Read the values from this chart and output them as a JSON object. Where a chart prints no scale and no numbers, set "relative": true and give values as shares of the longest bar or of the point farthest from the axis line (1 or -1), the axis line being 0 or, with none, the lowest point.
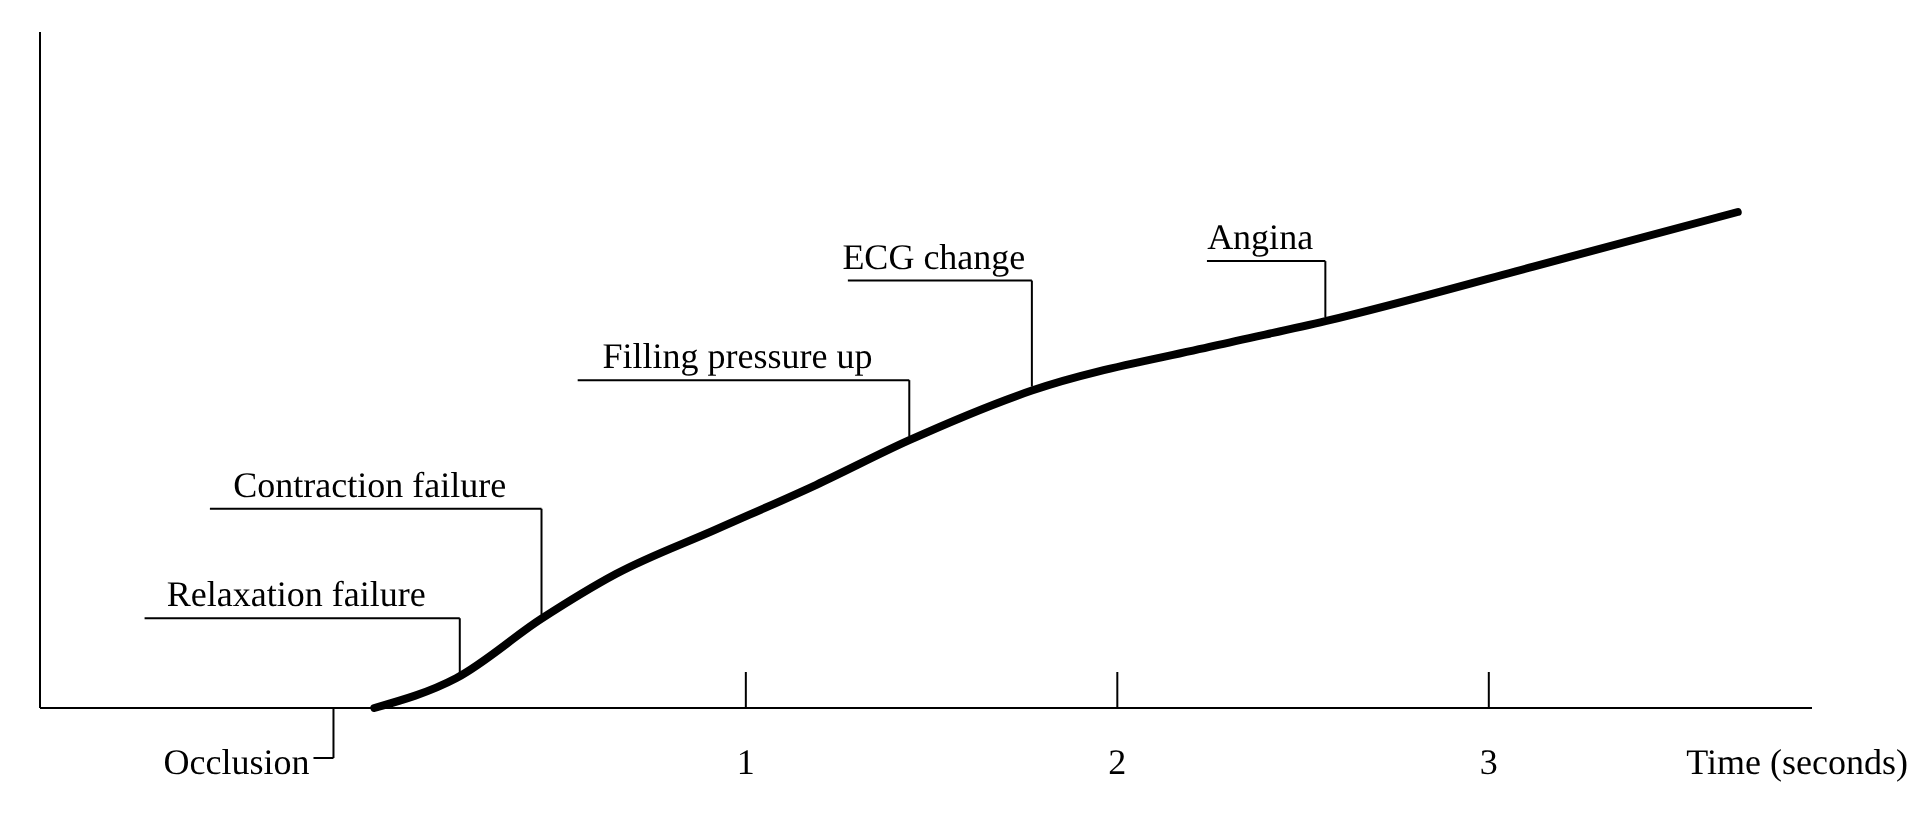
{
  "chart_data": {
    "type": "line",
    "relative": true,
    "xlabel": "Time (seconds)",
    "xlim": [
      -0.9,
      3.87
    ],
    "xticks": [
      1,
      2,
      3
    ],
    "series": [
      {
        "color": "#000000",
        "x": [
          0,
          0.22,
          0.45,
          0.65,
          0.92,
          1.19,
          1.44,
          1.77,
          2.26,
          2.56,
          3.12,
          3.67
        ],
        "values": [
          0,
          0.06,
          0.18,
          0.27,
          0.36,
          0.45,
          0.54,
          0.64,
          0.73,
          0.78,
          0.89,
          1
        ]
      }
    ],
    "ref_lines": [
      {
        "axis": "x",
        "value": -0.11,
        "label": "Occlusion"
      }
    ],
    "annotations": [
      {
        "text": "Relaxation failure",
        "x": 0.23,
        "y": 0.06
      },
      {
        "text": "Contraction failure",
        "x": 0.45,
        "y": 0.18
      },
      {
        "text": "Filling pressure up",
        "x": 1.44,
        "y": 0.54
      },
      {
        "text": "ECG change",
        "x": 1.77,
        "y": 0.64
      },
      {
        "text": "Angina",
        "x": 2.56,
        "y": 0.78
      }
    ]
  }
}
